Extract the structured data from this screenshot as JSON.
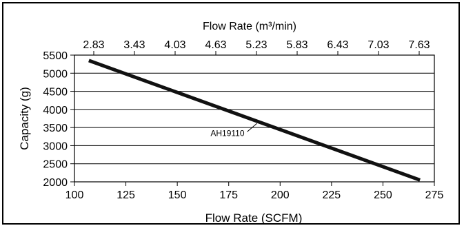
{
  "chart_data": {
    "type": "line",
    "title": "",
    "top_xlabel": "Flow Rate (m³/min)",
    "xlabel": "Flow Rate (SCFM)",
    "ylabel": "Capacity (g)",
    "xlim": [
      100,
      275
    ],
    "ylim": [
      2000,
      5500
    ],
    "x_ticks": [
      100,
      125,
      150,
      175,
      200,
      225,
      250,
      275
    ],
    "y_ticks": [
      2000,
      2500,
      3000,
      3500,
      4000,
      4500,
      5000,
      5500
    ],
    "top_ticks": [
      "2.83",
      "3.43",
      "4.03",
      "4.63",
      "5.23",
      "5.83",
      "6.43",
      "7.03",
      "7.63"
    ],
    "grid": "horizontal",
    "series": [
      {
        "x": [
          107,
          268
        ],
        "y": [
          5350,
          2050
        ]
      }
    ],
    "annotations": [
      {
        "text": "AH19110",
        "x": 186,
        "y": 3650
      }
    ]
  }
}
